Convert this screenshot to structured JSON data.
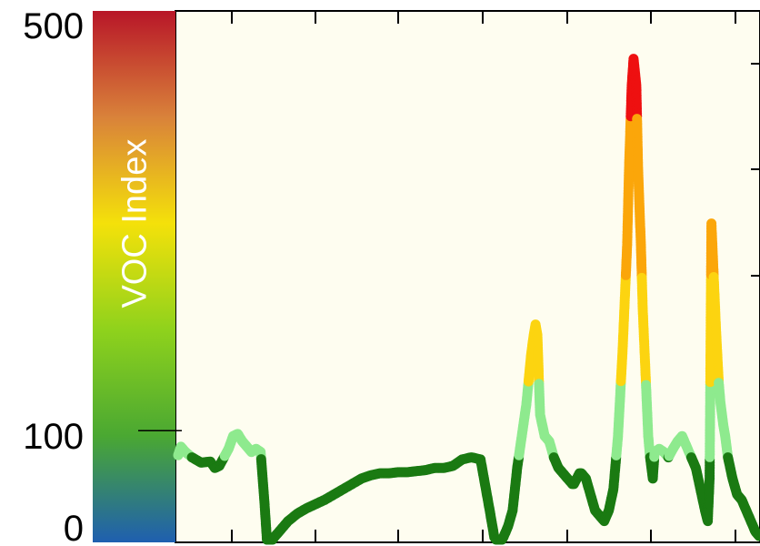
{
  "chart_data": {
    "type": "line",
    "title": "",
    "xlabel": "",
    "ylabel": "VOC Index",
    "ylim": [
      0,
      500
    ],
    "yticks": [
      0,
      100,
      500
    ],
    "ytick_labels": [
      "0",
      "100",
      "500"
    ],
    "grid": false,
    "legend": "none",
    "colorbar": {
      "label": "VOC Index",
      "range": [
        0,
        500
      ],
      "stops": [
        {
          "value": 0,
          "color": "#1f5fb0"
        },
        {
          "value": 100,
          "color": "#4aa832"
        },
        {
          "value": 200,
          "color": "#8fd21c"
        },
        {
          "value": 300,
          "color": "#f4e10a"
        },
        {
          "value": 400,
          "color": "#d9823a"
        },
        {
          "value": 500,
          "color": "#b81628"
        }
      ]
    },
    "level_colors": [
      {
        "max": 80,
        "color": "#1a7a12"
      },
      {
        "max": 150,
        "color": "#8eea8e"
      },
      {
        "max": 250,
        "color": "#fcd410"
      },
      {
        "max": 400,
        "color": "#fba60a"
      },
      {
        "max": 500,
        "color": "#ee1010"
      }
    ],
    "series": [
      {
        "x": [
          0,
          3,
          8,
          15,
          25,
          35,
          40,
          45,
          50,
          55,
          60,
          65,
          70,
          75,
          80,
          85,
          90,
          94,
          97,
          100,
          105,
          110,
          115,
          120,
          130,
          140,
          150,
          160,
          170,
          180,
          190,
          200,
          210,
          220,
          230,
          240,
          250,
          260,
          270,
          280,
          290,
          300,
          310,
          320,
          330,
          340,
          345,
          350,
          352,
          355,
          360,
          365,
          370,
          375,
          380,
          385,
          388,
          390,
          392,
          395,
          400,
          405,
          410,
          415,
          420,
          425,
          430,
          432,
          435,
          438,
          440,
          445,
          450,
          455,
          460,
          465,
          470,
          475,
          480,
          485,
          490,
          492,
          495,
          497,
          500,
          502,
          505,
          507,
          510,
          513,
          515,
          518,
          520,
          525,
          530,
          535,
          540,
          545,
          550,
          555,
          560,
          565,
          570,
          575,
          578,
          580,
          582,
          585,
          587,
          590,
          592,
          595,
          597,
          600,
          605,
          610,
          615,
          620,
          625,
          630,
          635
        ],
        "y": [
          82,
          90,
          85,
          80,
          75,
          76,
          70,
          72,
          80,
          88,
          100,
          102,
          95,
          90,
          85,
          88,
          85,
          40,
          0,
          -2,
          5,
          10,
          15,
          20,
          27,
          32,
          36,
          40,
          45,
          50,
          55,
          60,
          63,
          65,
          65,
          66,
          66,
          67,
          68,
          70,
          70,
          72,
          78,
          80,
          78,
          30,
          5,
          -2,
          0,
          5,
          15,
          30,
          70,
          100,
          130,
          175,
          195,
          205,
          195,
          120,
          100,
          95,
          80,
          70,
          65,
          60,
          55,
          55,
          60,
          65,
          65,
          60,
          45,
          30,
          25,
          20,
          30,
          50,
          100,
          180,
          280,
          350,
          430,
          455,
          430,
          350,
          280,
          220,
          160,
          100,
          80,
          60,
          85,
          88,
          85,
          80,
          88,
          95,
          100,
          90,
          80,
          70,
          50,
          30,
          20,
          60,
          300,
          240,
          200,
          150,
          130,
          110,
          100,
          80,
          60,
          45,
          40,
          30,
          20,
          10,
          5
        ]
      }
    ]
  }
}
